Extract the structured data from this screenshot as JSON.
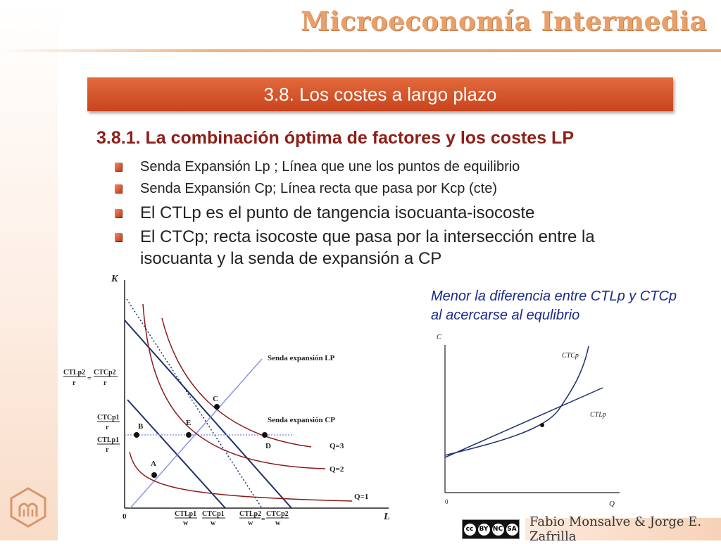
{
  "header": {
    "course_title": "Microeconomía Intermedia"
  },
  "banner": {
    "title": "3.8. Los costes a largo plazo"
  },
  "section": {
    "subtitle": "3.8.1. La combinación óptima de factores y los costes LP"
  },
  "bullets": [
    {
      "text": "Senda Expansión Lp ; Línea que une los puntos de equilibrio"
    },
    {
      "text": "Senda Expansión Cp; Línea recta que pasa por Kcp (cte)"
    },
    {
      "text": "El CTLp es el punto de tangencia isocuanta-isocoste"
    },
    {
      "text": "El CTCp; recta isocoste que pasa por la intersección entre la isocuanta y la senda de expansión a CP"
    }
  ],
  "note": {
    "text": "Menor la diferencia entre CTLp y CTCp al acercarse al equlibrio"
  },
  "left_diagram": {
    "axis_y": "K",
    "axis_x": "L",
    "origin": "0",
    "lines": {
      "expansion_lp": "Senda expansión LP",
      "expansion_cp": "Senda expansión CP"
    },
    "points": {
      "A": "A",
      "B": "B",
      "C": "C",
      "D": "D",
      "E": "E"
    },
    "isoquants": {
      "q1": "Q=1",
      "q2": "Q=2",
      "q3": "Q=3"
    },
    "y_ticks": [
      {
        "num1": "CTLp2",
        "eq": "=",
        "num2": "CTCp2",
        "den1": "r",
        "den2": "r"
      },
      {
        "num": "CTCp1",
        "den": "r"
      },
      {
        "num": "CTLp1",
        "den": "r"
      }
    ],
    "x_ticks": [
      {
        "num": "CTLp1",
        "den": "w"
      },
      {
        "num": "CTCp1",
        "den": "w"
      },
      {
        "num1": "CTLp2",
        "eq": "=",
        "num2": "CTCp2",
        "den1": "w",
        "den2": "w"
      }
    ]
  },
  "right_diagram": {
    "axis_y": "C",
    "axis_x": "Q",
    "origin": "0",
    "curves": {
      "ctcp": "CTCp",
      "ctlp": "CTLp"
    }
  },
  "footer": {
    "authors": "Fabio Monsalve & Jorge E. Zafrilla",
    "license_icons": [
      "cc",
      "BY",
      "NC",
      "SA"
    ]
  },
  "colors": {
    "banner": "#d4532a",
    "subtitle": "#8e1f18",
    "note": "#1a2a8a",
    "isocost": "#1c2f6e",
    "isoquant": "#8b1a1a",
    "expansion_lp": "#8b95e8"
  }
}
